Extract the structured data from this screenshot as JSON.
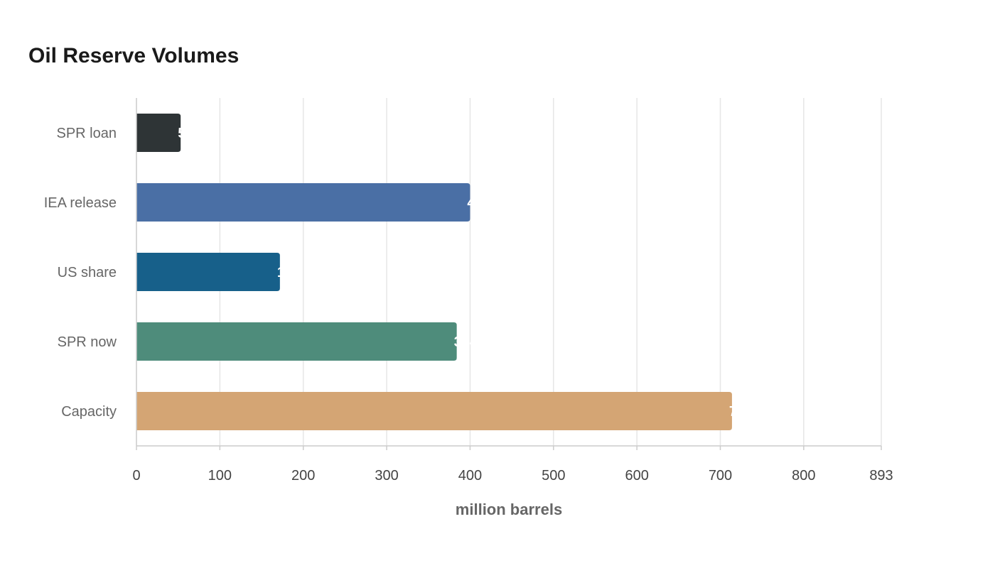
{
  "chart_data": {
    "type": "bar",
    "orientation": "horizontal",
    "title": "Oil Reserve Volumes",
    "xlabel": "million barrels",
    "ylabel": "",
    "categories": [
      "SPR loan",
      "IEA release",
      "US share",
      "SPR now",
      "Capacity"
    ],
    "values": [
      53,
      400,
      172,
      384,
      714
    ],
    "colors": [
      "#2e3436",
      "#4a6fa5",
      "#17608a",
      "#4e8c7b",
      "#d4a574"
    ],
    "xlim": [
      0,
      893
    ],
    "ticks": [
      "0",
      "100",
      "200",
      "300",
      "400",
      "500",
      "600",
      "700",
      "800",
      "893"
    ],
    "tick_values": [
      0,
      100,
      200,
      300,
      400,
      500,
      600,
      700,
      800,
      893
    ],
    "grid": true,
    "legend": "none"
  }
}
